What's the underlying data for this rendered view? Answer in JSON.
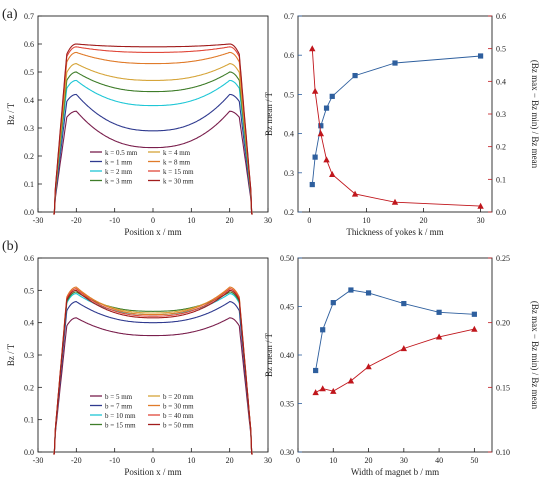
{
  "panel_labels": [
    "(a)",
    "(b)"
  ],
  "chart_data": [
    {
      "id": "a-left",
      "type": "line",
      "xlabel": "Position x / mm",
      "ylabel": "Bz / T",
      "xlim": [
        -30,
        30
      ],
      "ylim": [
        0,
        0.7
      ],
      "xticks": [
        -30,
        -20,
        -10,
        0,
        10,
        20,
        30
      ],
      "yticks": [
        0.0,
        0.1,
        0.2,
        0.3,
        0.4,
        0.5,
        0.6,
        0.7
      ],
      "legend_columns": 2,
      "series": [
        {
          "name": "k = 0.5 mm",
          "color": "#7a1f4d",
          "peak": 0.36,
          "center": 0.23
        },
        {
          "name": "k = 1 mm",
          "color": "#2f3a8f",
          "peak": 0.42,
          "center": 0.29
        },
        {
          "name": "k = 2 mm",
          "color": "#1fc7d6",
          "peak": 0.47,
          "center": 0.38
        },
        {
          "name": "k = 3 mm",
          "color": "#3f7d2a",
          "peak": 0.5,
          "center": 0.43
        },
        {
          "name": "k = 4 mm",
          "color": "#d6a53a",
          "peak": 0.53,
          "center": 0.47
        },
        {
          "name": "k = 8 mm",
          "color": "#e07b2a",
          "peak": 0.57,
          "center": 0.53
        },
        {
          "name": "k = 15 mm",
          "color": "#e0483a",
          "peak": 0.59,
          "center": 0.57
        },
        {
          "name": "k = 30 mm",
          "color": "#a11c1c",
          "peak": 0.6,
          "center": 0.59
        }
      ]
    },
    {
      "id": "a-right",
      "type": "line",
      "xlabel": "Thickness of yokes k / mm",
      "ylabel_left": "Bz mean / T",
      "ylabel_right": "(Bz max − Bz min) / Bz mean",
      "xlim": [
        -2,
        32
      ],
      "ylim_left": [
        0.2,
        0.7
      ],
      "ylim_right": [
        0.0,
        0.6
      ],
      "xticks": [
        0,
        10,
        20,
        30
      ],
      "yticks_left": [
        0.2,
        0.3,
        0.4,
        0.5,
        0.6,
        0.7
      ],
      "yticks_right": [
        0.0,
        0.1,
        0.2,
        0.3,
        0.4,
        0.5,
        0.6
      ],
      "series": [
        {
          "name": "Bz mean",
          "axis": "left",
          "marker": "square",
          "color": "#2e5f9e",
          "x": [
            0.5,
            1,
            2,
            3,
            4,
            8,
            15,
            30
          ],
          "y": [
            0.27,
            0.34,
            0.42,
            0.465,
            0.495,
            0.548,
            0.58,
            0.598
          ]
        },
        {
          "name": "non-uniformity",
          "axis": "right",
          "marker": "triangle",
          "color": "#c0161c",
          "x": [
            0.5,
            1,
            2,
            3,
            4,
            8,
            15,
            30
          ],
          "y": [
            0.5,
            0.37,
            0.24,
            0.16,
            0.115,
            0.055,
            0.03,
            0.018
          ]
        }
      ]
    },
    {
      "id": "b-left",
      "type": "line",
      "xlabel": "Position x / mm",
      "ylabel": "Bz / T",
      "xlim": [
        -30,
        30
      ],
      "ylim": [
        0,
        0.6
      ],
      "xticks": [
        -30,
        -20,
        -10,
        0,
        10,
        20,
        30
      ],
      "yticks": [
        0.0,
        0.1,
        0.2,
        0.3,
        0.4,
        0.5,
        0.6
      ],
      "legend_columns": 2,
      "series": [
        {
          "name": "b = 5 mm",
          "color": "#7a1f4d",
          "peak": 0.415,
          "center": 0.36
        },
        {
          "name": "b = 7 mm",
          "color": "#2f3a8f",
          "peak": 0.465,
          "center": 0.4
        },
        {
          "name": "b = 10 mm",
          "color": "#1fc7d6",
          "peak": 0.49,
          "center": 0.425
        },
        {
          "name": "b = 15 mm",
          "color": "#3f7d2a",
          "peak": 0.495,
          "center": 0.435
        },
        {
          "name": "b = 20 mm",
          "color": "#d6a53a",
          "peak": 0.505,
          "center": 0.43
        },
        {
          "name": "b = 30 mm",
          "color": "#e07b2a",
          "peak": 0.51,
          "center": 0.425
        },
        {
          "name": "b = 40 mm",
          "color": "#e0483a",
          "peak": 0.505,
          "center": 0.42
        },
        {
          "name": "b = 50 mm",
          "color": "#a11c1c",
          "peak": 0.5,
          "center": 0.415
        }
      ]
    },
    {
      "id": "b-right",
      "type": "line",
      "xlabel": "Width of magnet b / mm",
      "ylabel_left": "Bz mean / T",
      "ylabel_right": "(Bz max − Bz min) / Bz mean",
      "xlim": [
        0,
        55
      ],
      "ylim_left": [
        0.3,
        0.5
      ],
      "ylim_right": [
        0.1,
        0.25
      ],
      "xticks": [
        0,
        10,
        20,
        30,
        40,
        50
      ],
      "yticks_left": [
        0.3,
        0.35,
        0.4,
        0.45,
        0.5
      ],
      "yticks_right": [
        0.1,
        0.15,
        0.2,
        0.25
      ],
      "series": [
        {
          "name": "Bz mean",
          "axis": "left",
          "marker": "square",
          "color": "#2e5f9e",
          "x": [
            5,
            7,
            10,
            15,
            20,
            30,
            40,
            50
          ],
          "y": [
            0.384,
            0.426,
            0.454,
            0.467,
            0.464,
            0.453,
            0.444,
            0.442
          ]
        },
        {
          "name": "non-uniformity",
          "axis": "right",
          "marker": "triangle",
          "color": "#c0161c",
          "x": [
            5,
            7,
            10,
            15,
            20,
            30,
            40,
            50
          ],
          "y": [
            0.146,
            0.149,
            0.147,
            0.155,
            0.166,
            0.18,
            0.189,
            0.195
          ]
        }
      ]
    }
  ]
}
